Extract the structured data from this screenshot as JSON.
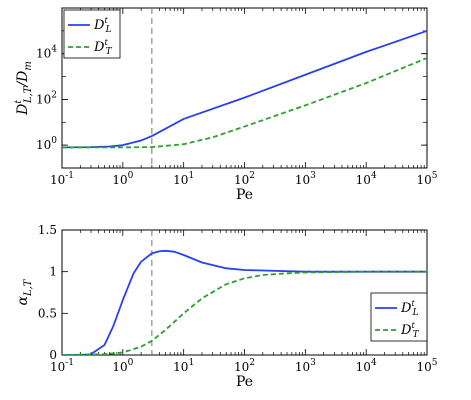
{
  "chart_data": [
    {
      "type": "line",
      "xlabel": "Pe",
      "ylabel_main": "D",
      "ylabel_sup": "t",
      "ylabel_sub": "L,T",
      "ylabel_tail": "/D",
      "ylabel_tail_sub": "m",
      "xscale": "log",
      "yscale": "log",
      "xlim": [
        0.1,
        100000
      ],
      "ylim": [
        0.1,
        1000000
      ],
      "x_ticks": [
        {
          "base": "10",
          "exp": "-1",
          "value": 0.1
        },
        {
          "base": "10",
          "exp": "0",
          "value": 1
        },
        {
          "base": "10",
          "exp": "1",
          "value": 10
        },
        {
          "base": "10",
          "exp": "2",
          "value": 100
        },
        {
          "base": "10",
          "exp": "3",
          "value": 1000
        },
        {
          "base": "10",
          "exp": "4",
          "value": 10000
        },
        {
          "base": "10",
          "exp": "5",
          "value": 100000
        }
      ],
      "y_ticks": [
        {
          "base": "10",
          "exp": "0",
          "value": 1
        },
        {
          "base": "10",
          "exp": "2",
          "value": 100
        },
        {
          "base": "10",
          "exp": "4",
          "value": 10000
        }
      ],
      "vline_x": 3,
      "legend_position": "top-left",
      "series": [
        {
          "name": "D",
          "name_sup": "t",
          "name_sub": "L",
          "color": "#2b3ff2",
          "dash": "solid",
          "x": [
            0.1,
            0.3,
            0.6,
            1,
            2,
            3,
            10,
            100,
            1000,
            10000,
            100000
          ],
          "y": [
            0.8,
            0.82,
            0.87,
            1.0,
            1.6,
            2.5,
            14,
            120,
            1200,
            12000,
            100000
          ]
        },
        {
          "name": "D",
          "name_sup": "t",
          "name_sub": "T",
          "color": "#2ca02c",
          "dash": "dashed",
          "x": [
            0.1,
            1,
            3,
            10,
            30,
            100,
            1000,
            10000,
            100000
          ],
          "y": [
            0.8,
            0.8,
            0.82,
            1.1,
            2.2,
            6.5,
            55,
            520,
            6500
          ]
        }
      ]
    },
    {
      "type": "line",
      "xlabel": "Pe",
      "ylabel_main": "α",
      "ylabel_sub": "L,T",
      "xscale": "log",
      "yscale": "linear",
      "xlim": [
        0.1,
        100000
      ],
      "ylim": [
        0,
        1.5
      ],
      "x_ticks": [
        {
          "base": "10",
          "exp": "-1",
          "value": 0.1
        },
        {
          "base": "10",
          "exp": "0",
          "value": 1
        },
        {
          "base": "10",
          "exp": "1",
          "value": 10
        },
        {
          "base": "10",
          "exp": "2",
          "value": 100
        },
        {
          "base": "10",
          "exp": "3",
          "value": 1000
        },
        {
          "base": "10",
          "exp": "4",
          "value": 10000
        },
        {
          "base": "10",
          "exp": "5",
          "value": 100000
        }
      ],
      "y_ticks": [
        {
          "label": "0",
          "value": 0
        },
        {
          "label": "0.5",
          "value": 0.5
        },
        {
          "label": "1",
          "value": 1
        },
        {
          "label": "1.5",
          "value": 1.5
        }
      ],
      "vline_x": 3,
      "legend_position": "bottom-right",
      "series": [
        {
          "name": "D",
          "name_sup": "t",
          "name_sub": "L",
          "color": "#2b3ff2",
          "dash": "solid",
          "x": [
            0.1,
            0.2,
            0.3,
            0.5,
            0.7,
            1,
            1.5,
            2,
            3,
            4,
            5,
            7,
            10,
            20,
            50,
            100,
            1000,
            10000,
            100000
          ],
          "y": [
            0,
            0,
            0.01,
            0.12,
            0.35,
            0.66,
            0.98,
            1.12,
            1.22,
            1.245,
            1.25,
            1.24,
            1.2,
            1.11,
            1.04,
            1.02,
            1.0,
            1.0,
            1.0
          ]
        },
        {
          "name": "D",
          "name_sup": "t",
          "name_sub": "T",
          "color": "#2ca02c",
          "dash": "dashed",
          "x": [
            0.1,
            0.5,
            1,
            2,
            3,
            5,
            10,
            20,
            50,
            100,
            200,
            500,
            1000,
            10000,
            100000
          ],
          "y": [
            0,
            0.01,
            0.03,
            0.1,
            0.17,
            0.3,
            0.5,
            0.68,
            0.85,
            0.92,
            0.96,
            0.98,
            0.99,
            1.0,
            1.0
          ]
        }
      ]
    }
  ]
}
